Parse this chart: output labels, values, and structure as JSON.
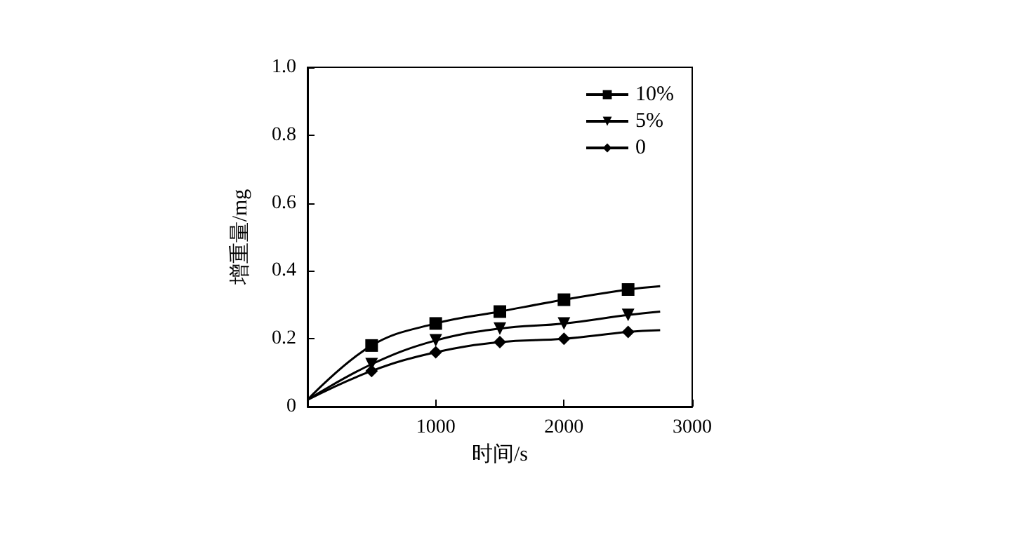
{
  "chart_data": {
    "type": "line",
    "xlabel": "时间/s",
    "ylabel": "增重量/mg",
    "x": [
      0,
      500,
      1000,
      1500,
      2000,
      2500,
      2750
    ],
    "series": [
      {
        "name": "10%",
        "color": "#000000",
        "marker": "square",
        "values": [
          0.02,
          0.18,
          0.245,
          0.28,
          0.315,
          0.345,
          0.355
        ]
      },
      {
        "name": "5%",
        "color": "#000000",
        "marker": "triangle",
        "values": [
          0.02,
          0.125,
          0.195,
          0.23,
          0.245,
          0.27,
          0.28
        ]
      },
      {
        "name": "0",
        "color": "#000000",
        "marker": "diamond",
        "values": [
          0.02,
          0.105,
          0.16,
          0.19,
          0.2,
          0.22,
          0.225
        ]
      }
    ],
    "xlim": [
      0,
      3000
    ],
    "xticks": [
      1000,
      2000,
      3000
    ],
    "ylim": [
      0,
      1.0
    ],
    "yticks": [
      0,
      0.2,
      0.4,
      0.6,
      0.8,
      {
        "value": 1.0,
        "label": "1.0"
      }
    ],
    "grid": false,
    "legend": "top right",
    "line_style": "solid"
  }
}
